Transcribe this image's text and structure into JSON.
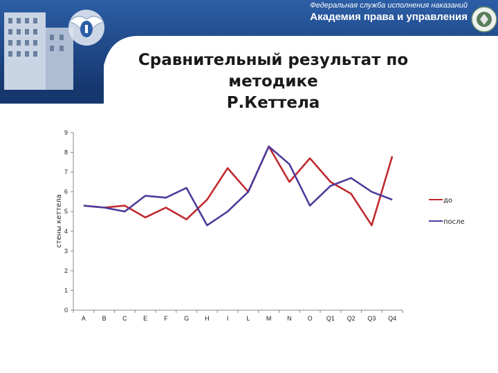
{
  "header": {
    "org_line1": "Федеральная служба исполнения наказаний",
    "org_line2": "Академия права и управления",
    "banner_color": "#1d4a8c"
  },
  "slide": {
    "title_line1": "Сравнительный результат по методике",
    "title_line2": "Р.Кеттела"
  },
  "chart_data": {
    "type": "line",
    "title": "",
    "xlabel": "",
    "ylabel": "стены кеттела",
    "categories": [
      "A",
      "B",
      "C",
      "E",
      "F",
      "G",
      "H",
      "I",
      "L",
      "M",
      "N",
      "O",
      "Q1",
      "Q2",
      "Q3",
      "Q4"
    ],
    "ylim": [
      0,
      9
    ],
    "yticks": [
      "0",
      "1",
      "2",
      "3",
      "4",
      "5",
      "6",
      "7",
      "8",
      "9"
    ],
    "grid": false,
    "legend_position": "right",
    "series": [
      {
        "name": "до",
        "color": "#c0282d",
        "values": [
          5.3,
          5.2,
          5.3,
          4.7,
          5.2,
          4.6,
          5.6,
          7.2,
          6.0,
          8.3,
          6.5,
          7.7,
          6.5,
          5.9,
          4.3,
          7.8
        ]
      },
      {
        "name": "после",
        "color": "#4b3b9a",
        "values": [
          5.3,
          5.2,
          5.0,
          5.8,
          5.7,
          6.2,
          4.3,
          5.0,
          6.0,
          8.3,
          7.4,
          5.3,
          6.3,
          6.7,
          6.0,
          5.6
        ]
      }
    ]
  }
}
